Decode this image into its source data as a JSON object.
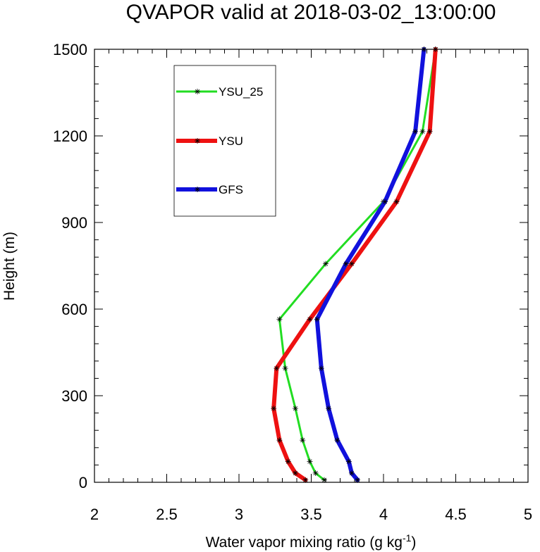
{
  "chart_data": {
    "type": "line",
    "title": "QVAPOR valid at 2018-03-02_13:00:00",
    "xlabel": "Water vapor mixing ratio (g kg",
    "xlabel_sup": "-1",
    "xlabel_end": ")",
    "ylabel": "Height (m)",
    "xlim": [
      2,
      5
    ],
    "ylim": [
      0,
      1500
    ],
    "xticks": [
      2,
      2.5,
      3,
      3.5,
      4,
      4.5,
      5
    ],
    "xtick_labels": [
      "2",
      "2.5",
      "3",
      "3.5",
      "4",
      "4.5",
      "5"
    ],
    "yticks": [
      0,
      300,
      600,
      900,
      1200,
      1500
    ],
    "ytick_labels": [
      "0",
      "300",
      "600",
      "900",
      "1200",
      "1500"
    ],
    "legend_position": "top-left",
    "series": [
      {
        "name": "YSU_25",
        "color": "#22dd22",
        "x": [
          3.59,
          3.53,
          3.49,
          3.44,
          3.39,
          3.32,
          3.28,
          3.6,
          4.0,
          4.27,
          4.36
        ],
        "y": [
          8,
          32,
          72,
          146,
          256,
          395,
          565,
          757,
          972,
          1215,
          1500
        ]
      },
      {
        "name": "YSU",
        "color": "#ee1111",
        "x": [
          3.46,
          3.39,
          3.34,
          3.28,
          3.24,
          3.26,
          3.49,
          3.78,
          4.09,
          4.32,
          4.36
        ],
        "y": [
          8,
          32,
          72,
          146,
          256,
          395,
          565,
          757,
          972,
          1215,
          1500
        ]
      },
      {
        "name": "GFS",
        "color": "#1111dd",
        "x": [
          3.82,
          3.78,
          3.76,
          3.68,
          3.62,
          3.57,
          3.54,
          3.74,
          4.01,
          4.22,
          4.28
        ],
        "y": [
          8,
          32,
          72,
          146,
          256,
          395,
          565,
          757,
          972,
          1215,
          1500
        ]
      }
    ]
  }
}
